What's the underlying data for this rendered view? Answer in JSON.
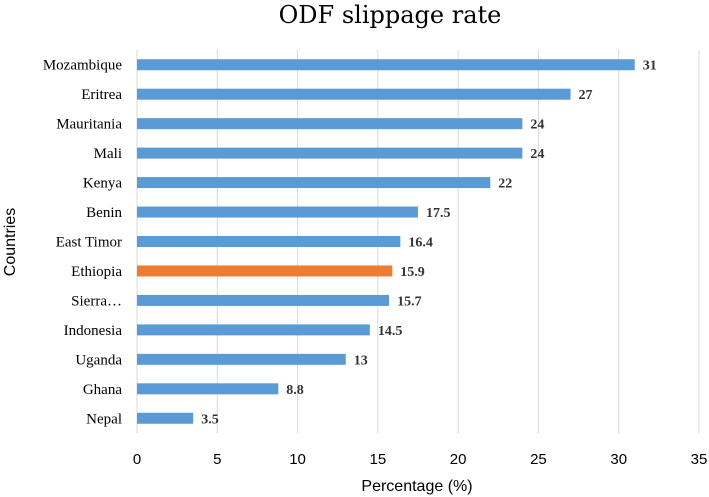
{
  "chart_data": {
    "type": "bar",
    "orientation": "horizontal",
    "title": "ODF slippage rate",
    "xlabel": "Percentage (%)",
    "ylabel": "Countries",
    "xlim": [
      0,
      35
    ],
    "xticks": [
      0,
      5,
      10,
      15,
      20,
      25,
      30,
      35
    ],
    "grid": true,
    "categories": [
      "Mozambique",
      "Eritrea",
      "Mauritania",
      "Mali",
      "Kenya",
      "Benin",
      "East Timor",
      "Ethiopia",
      "Sierra…",
      "Indonesia",
      "Uganda",
      "Ghana",
      "Nepal"
    ],
    "values": [
      31,
      27,
      24,
      24,
      22,
      17.5,
      16.4,
      15.9,
      15.7,
      14.5,
      13,
      8.8,
      3.5
    ],
    "data_labels": [
      "31",
      "27",
      "24",
      "24",
      "22",
      "17.5",
      "16.4",
      "15.9",
      "15.7",
      "14.5",
      "13",
      "8.8",
      "3.5"
    ],
    "highlight_category": "Ethiopia",
    "colors": {
      "bar": "#5b9bd5",
      "highlight": "#ed7d31",
      "grid": "#d9d9d9"
    }
  }
}
